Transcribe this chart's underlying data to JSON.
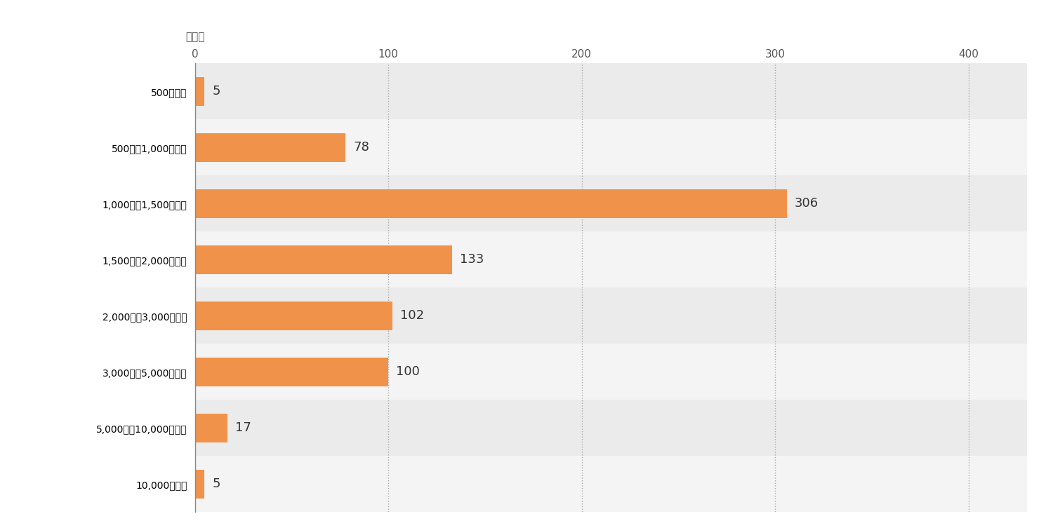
{
  "categories": [
    "500円未満",
    "500円～1,000円未満",
    "1,000円～1,500円未満",
    "1,500円～2,000円未満",
    "2,000円～3,000円未満",
    "3,000円～5,000円未満",
    "5,000円～10,000円未満",
    "10,000円以上"
  ],
  "values": [
    5,
    78,
    306,
    133,
    102,
    100,
    17,
    5
  ],
  "bar_color": "#F0924A",
  "row_colors": [
    "#ebebeb",
    "#f4f4f4"
  ],
  "plot_background": "#ffffff",
  "axis_label_top": "（人）",
  "xlim": [
    0,
    430
  ],
  "xticks": [
    0,
    100,
    200,
    300,
    400
  ],
  "grid_color": "#aaaaaa",
  "label_fontsize": 13,
  "tick_fontsize": 11,
  "value_fontsize": 13,
  "bar_height": 0.52
}
